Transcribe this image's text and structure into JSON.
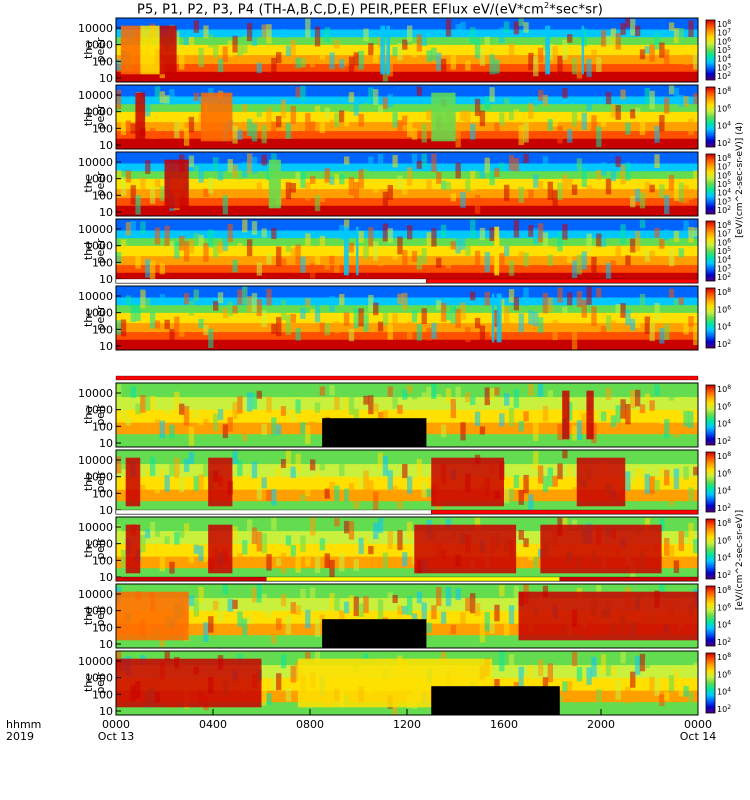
{
  "chart_data": {
    "type": "heatmap",
    "title": "P5, P1, P2, P3, P4 (TH-A,B,C,D,E) PEIR,PEER EFlux eV/(eV*cm",
    "title_sup": "2",
    "title_tail": "*sec*sr)",
    "x_axis_name": "hhmm",
    "x_axis_year": "2019",
    "x_ticks": [
      "0000",
      "0400",
      "0800",
      "1200",
      "1600",
      "2000",
      "0000"
    ],
    "x_dates": [
      "Oct 13",
      "Oct 14"
    ],
    "y_ticks": [
      "10",
      "100",
      "1000",
      "10000"
    ],
    "colorbar_label_peer": "[eV/(cm^2-sec-sr-eV)] (4)",
    "colorbar_label_peir": "[eV/(cm^2-sec-sr-eV)]",
    "panels": [
      {
        "probe": "tha",
        "species": "peer",
        "colorbar_ticks": [
          "10^8",
          "10^7",
          "10^6",
          "10^5",
          "10^4",
          "10^3",
          "10^2"
        ],
        "features": [
          [
            1.0,
            1.8,
            "mid"
          ],
          [
            1.8,
            2.5,
            "hot"
          ],
          [
            0.2,
            1.0,
            "warm"
          ],
          [
            10.9,
            11.1,
            "blue"
          ],
          [
            11.15,
            11.3,
            "blue"
          ],
          [
            17.7,
            17.9,
            "blue"
          ],
          [
            19.2,
            19.3,
            "blue"
          ]
        ]
      },
      {
        "probe": "thb",
        "species": "peer",
        "colorbar_ticks": [
          "10^8",
          "10^6",
          "10^4",
          "10^2"
        ],
        "features": [
          [
            0.8,
            1.2,
            "hot"
          ],
          [
            3.5,
            4.8,
            "warm"
          ],
          [
            13.0,
            14.0,
            "cool"
          ]
        ]
      },
      {
        "probe": "thc",
        "species": "peer",
        "colorbar_ticks": [
          "10^8",
          "10^7",
          "10^6",
          "10^5",
          "10^4",
          "10^3",
          "10^2"
        ],
        "features": [
          [
            6.3,
            6.8,
            "cool"
          ],
          [
            2.0,
            3.0,
            "hot"
          ]
        ]
      },
      {
        "probe": "thd",
        "species": "peer",
        "colorbar_ticks": [
          "10^8",
          "10^7",
          "10^6",
          "10^5",
          "10^4",
          "10^3",
          "10^2"
        ],
        "features": [
          [
            9.4,
            9.6,
            "blue"
          ],
          [
            9.9,
            10.0,
            "blue"
          ],
          [
            15.6,
            15.8,
            "mid"
          ]
        ]
      },
      {
        "probe": "the",
        "species": "peer",
        "colorbar_ticks": [
          "10^8",
          "10^6",
          "10^4",
          "10^2"
        ],
        "features": [
          [
            15.5,
            15.6,
            "blue"
          ],
          [
            15.7,
            15.9,
            "blue"
          ]
        ]
      },
      {
        "probe": "tha",
        "species": "peir",
        "colorbar_ticks": [
          "10^8",
          "10^6",
          "10^4",
          "10^2"
        ],
        "features": [
          [
            18.4,
            18.7,
            "hot"
          ],
          [
            19.4,
            19.7,
            "hot"
          ]
        ]
      },
      {
        "probe": "thb",
        "species": "peir",
        "colorbar_ticks": [
          "10^8",
          "10^6",
          "10^4",
          "10^2"
        ],
        "features": [
          [
            0.4,
            1.0,
            "hot"
          ],
          [
            3.8,
            4.8,
            "hot"
          ],
          [
            13.0,
            16.0,
            "hot"
          ],
          [
            19.0,
            21.0,
            "hot"
          ]
        ]
      },
      {
        "probe": "thc",
        "species": "peir",
        "colorbar_ticks": [
          "10^8",
          "10^6",
          "10^4",
          "10^2"
        ],
        "features": [
          [
            0.4,
            1.0,
            "hot"
          ],
          [
            3.8,
            4.8,
            "hot"
          ],
          [
            12.3,
            16.5,
            "hot"
          ],
          [
            17.5,
            22.5,
            "hot"
          ]
        ]
      },
      {
        "probe": "thd",
        "species": "peir",
        "colorbar_ticks": [
          "10^8",
          "10^6",
          "10^4",
          "10^2"
        ],
        "features": [
          [
            16.6,
            24.0,
            "hot"
          ],
          [
            0.0,
            3.0,
            "warm"
          ]
        ]
      },
      {
        "probe": "the",
        "species": "peir",
        "colorbar_ticks": [
          "10^8",
          "10^6",
          "10^4",
          "10^2"
        ],
        "features": [
          [
            0.0,
            6.0,
            "hot"
          ],
          [
            7.5,
            15.5,
            "mid"
          ]
        ]
      }
    ],
    "mode_bars": [
      {
        "after_panel": 4,
        "segments": [
          [
            0,
            12.8,
            "#ffffff"
          ],
          [
            12.8,
            24,
            "#ff0000"
          ]
        ]
      },
      {
        "after_panel": 5,
        "segments": [
          [
            0,
            24,
            "#ff0000"
          ]
        ]
      },
      {
        "after_panel": 7,
        "segments": [
          [
            0,
            13,
            "#ffffff"
          ],
          [
            13,
            24,
            "#ff0000"
          ]
        ]
      },
      {
        "after_panel": 8,
        "segments": [
          [
            0,
            6.2,
            "#cc0000"
          ],
          [
            6.2,
            18.3,
            "#ffff00"
          ],
          [
            18.3,
            24,
            "#cc0000"
          ]
        ]
      }
    ],
    "colors": {
      "red": "#c80000",
      "orange": "#ff8c00",
      "yellow": "#ffe000",
      "green": "#64dc50",
      "cyan": "#00c8ff",
      "blue": "#0000c8",
      "purple": "#500078",
      "black": "#000000"
    }
  }
}
